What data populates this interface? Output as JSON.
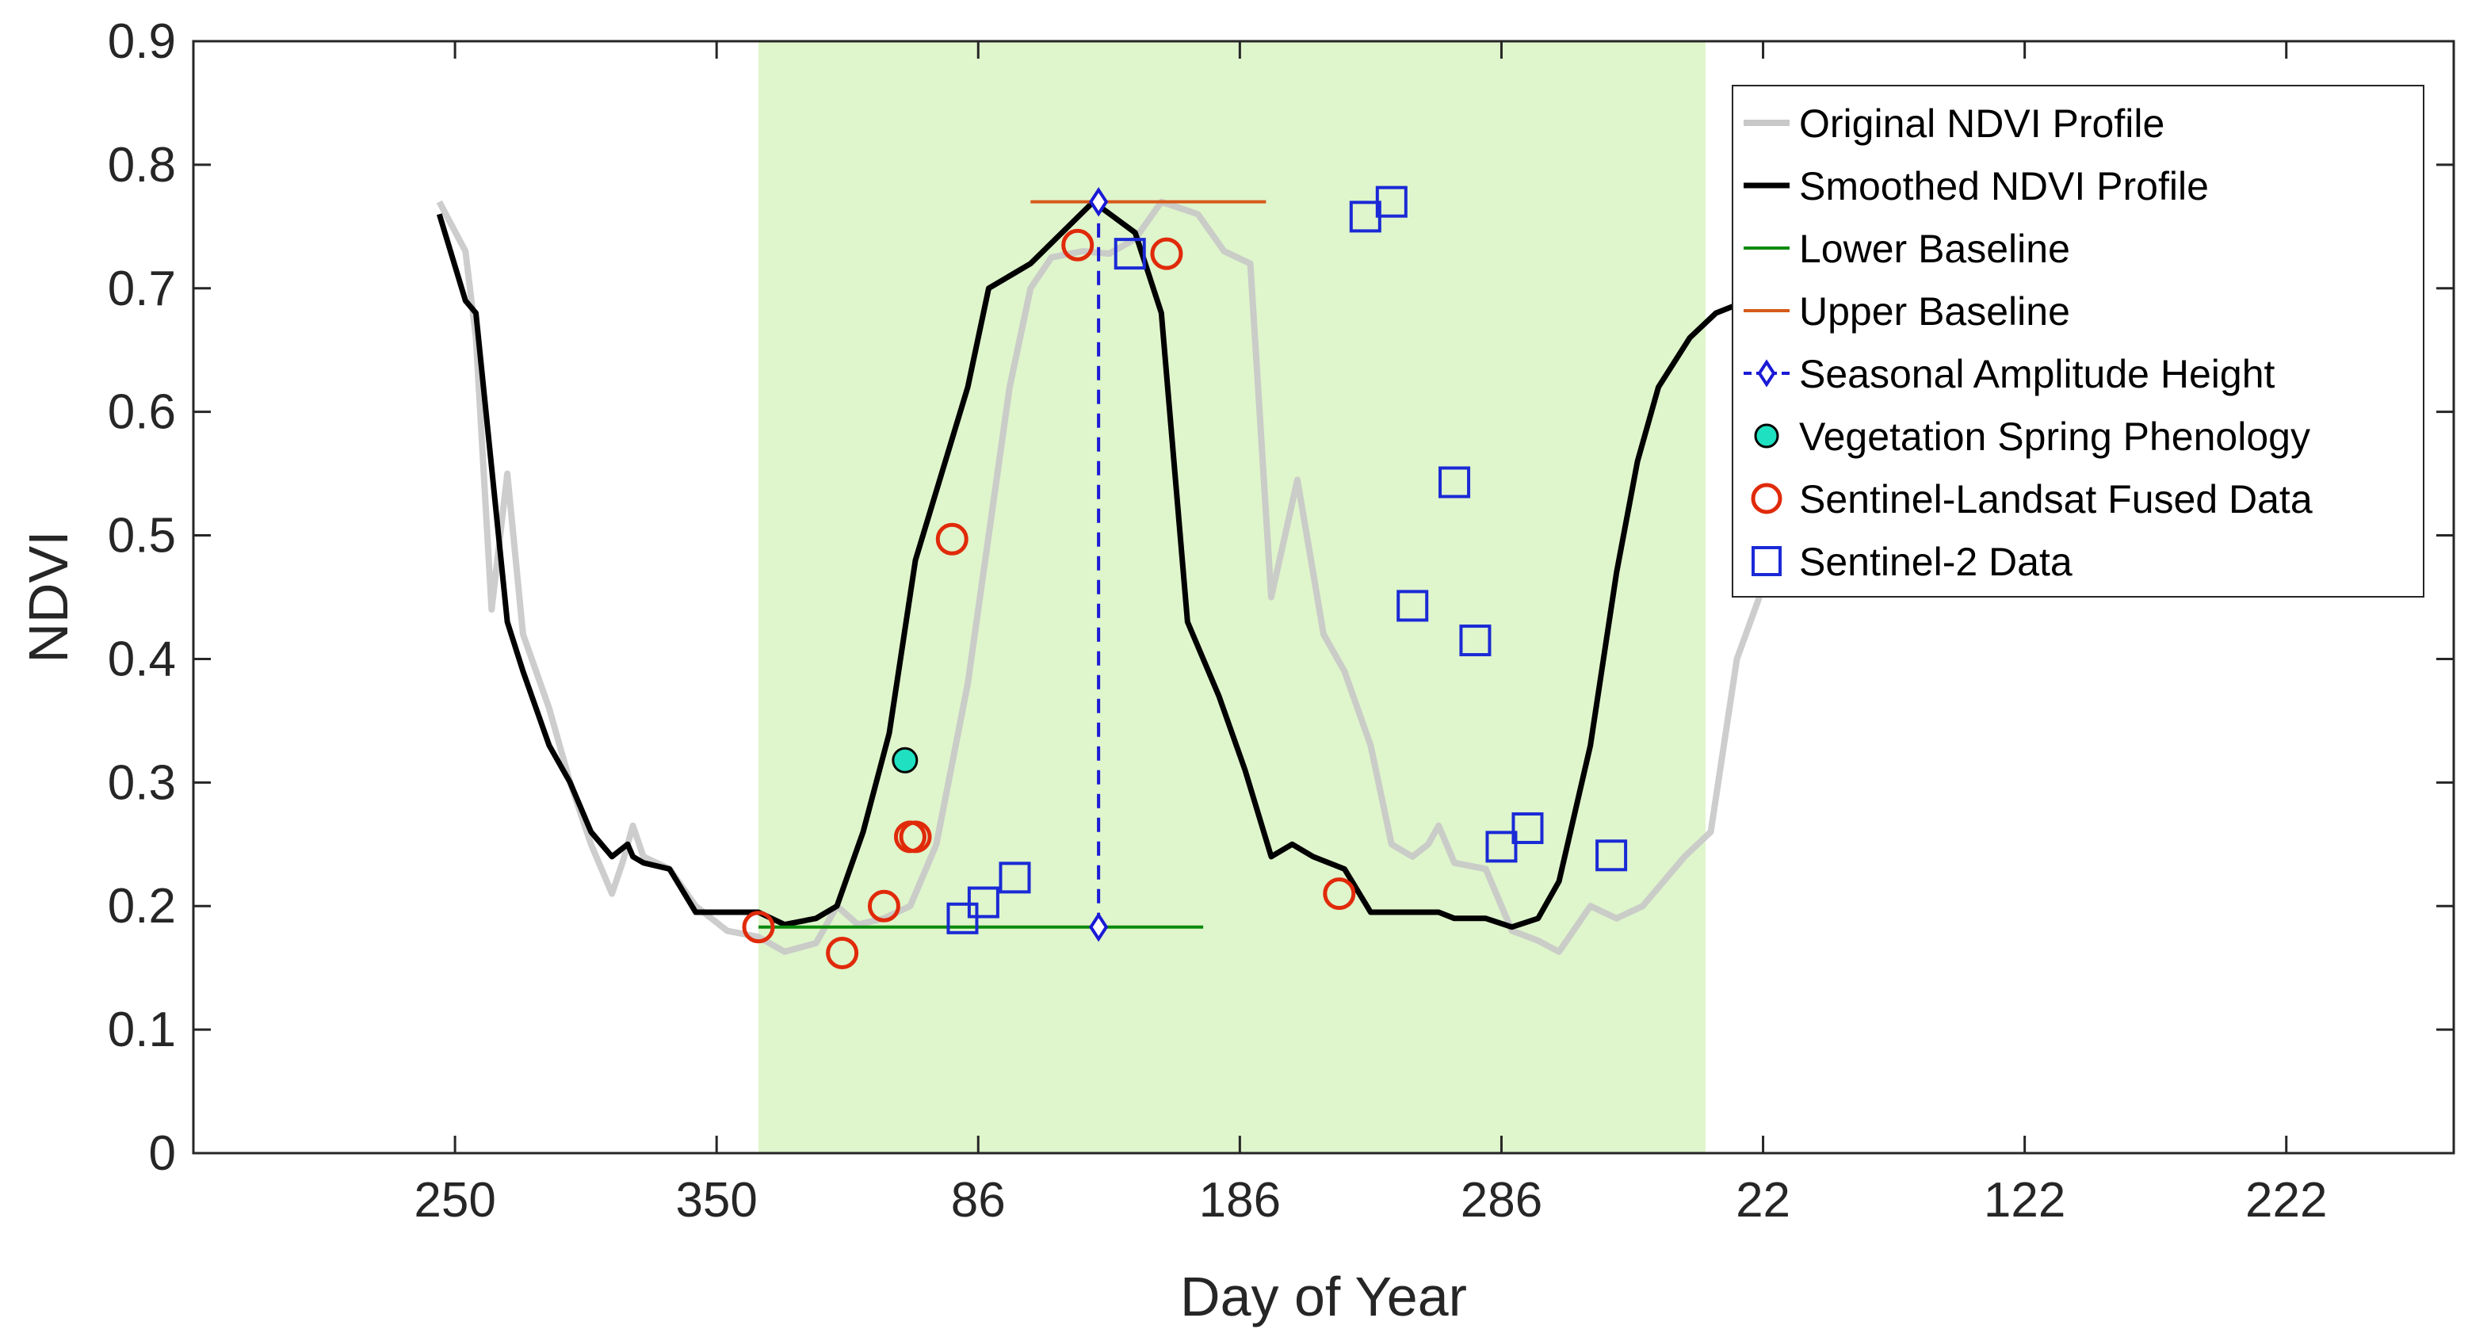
{
  "chart_data": {
    "type": "line",
    "title": "",
    "xlabel": "Day of Year",
    "ylabel": "NDVI",
    "x_range": [
      200,
      570
    ],
    "ylim": [
      0,
      0.9
    ],
    "grid": false,
    "legend_position": "top-right",
    "x_ticks": [
      {
        "x": 250,
        "label": "250"
      },
      {
        "x": 300,
        "label": "350"
      },
      {
        "x": 350,
        "label": "86"
      },
      {
        "x": 400,
        "label": "186"
      },
      {
        "x": 450,
        "label": "286"
      },
      {
        "x": 500,
        "label": "22"
      },
      {
        "x": 550,
        "label": "122"
      },
      {
        "x": 600,
        "label": "222"
      }
    ],
    "y_ticks": [
      {
        "y": 0,
        "label": "0"
      },
      {
        "y": 0.1,
        "label": "0.1"
      },
      {
        "y": 0.2,
        "label": "0.2"
      },
      {
        "y": 0.3,
        "label": "0.3"
      },
      {
        "y": 0.4,
        "label": "0.4"
      },
      {
        "y": 0.5,
        "label": "0.5"
      },
      {
        "y": 0.6,
        "label": "0.6"
      },
      {
        "y": 0.7,
        "label": "0.7"
      },
      {
        "y": 0.8,
        "label": "0.8"
      },
      {
        "y": 0.9,
        "label": "0.9"
      }
    ],
    "season_band": {
      "x_start": 308,
      "x_end": 489,
      "color": "#dff5cc"
    },
    "series": [
      {
        "name": "Original NDVI Profile",
        "color": "#c8c8c8",
        "x": [
          247,
          252,
          254,
          257,
          260,
          263,
          268,
          272,
          276,
          280,
          282,
          284,
          286,
          291,
          296,
          302,
          308,
          313,
          319,
          323,
          327,
          332,
          337,
          342,
          348,
          352,
          356,
          360,
          364,
          370,
          375,
          380,
          385,
          392,
          397,
          402,
          406,
          411,
          416,
          420,
          425,
          429,
          433,
          436,
          438,
          441,
          447,
          452,
          457,
          461,
          467,
          472,
          477,
          481,
          485,
          490,
          495,
          501,
          506,
          510,
          515,
          521,
          525,
          530,
          535,
          540,
          546,
          550,
          553
        ],
        "y": [
          0.77,
          0.73,
          0.66,
          0.44,
          0.55,
          0.42,
          0.36,
          0.3,
          0.25,
          0.21,
          0.235,
          0.265,
          0.24,
          0.23,
          0.2,
          0.18,
          0.175,
          0.163,
          0.17,
          0.2,
          0.185,
          0.19,
          0.2,
          0.25,
          0.38,
          0.5,
          0.62,
          0.7,
          0.725,
          0.73,
          0.728,
          0.74,
          0.77,
          0.76,
          0.73,
          0.72,
          0.45,
          0.545,
          0.42,
          0.39,
          0.33,
          0.25,
          0.24,
          0.25,
          0.265,
          0.235,
          0.23,
          0.18,
          0.172,
          0.163,
          0.2,
          0.19,
          0.2,
          0.22,
          0.24,
          0.26,
          0.4,
          0.47,
          0.56,
          0.6,
          0.63,
          0.65,
          0.67,
          0.68,
          0.69,
          0.7,
          0.71,
          0.72,
          0.72
        ]
      },
      {
        "name": "Smoothed NDVI Profile",
        "color": "#000000",
        "x": [
          247,
          252,
          254,
          260,
          263,
          268,
          272,
          276,
          280,
          283,
          284,
          286,
          291,
          296,
          302,
          308,
          313,
          319,
          323,
          328,
          333,
          338,
          343,
          348,
          352,
          356,
          360,
          366,
          372,
          380,
          385,
          390,
          396,
          401,
          406,
          410,
          414,
          420,
          425,
          429,
          433,
          436,
          438,
          441,
          447,
          452,
          457,
          461,
          467,
          472,
          476,
          480,
          486,
          491,
          497,
          502,
          507
        ],
        "y": [
          0.76,
          0.69,
          0.68,
          0.43,
          0.39,
          0.33,
          0.3,
          0.26,
          0.24,
          0.25,
          0.24,
          0.235,
          0.23,
          0.195,
          0.195,
          0.195,
          0.185,
          0.19,
          0.2,
          0.26,
          0.34,
          0.48,
          0.55,
          0.62,
          0.7,
          0.71,
          0.72,
          0.745,
          0.77,
          0.745,
          0.68,
          0.43,
          0.37,
          0.31,
          0.24,
          0.25,
          0.24,
          0.23,
          0.195,
          0.195,
          0.195,
          0.195,
          0.195,
          0.19,
          0.19,
          0.183,
          0.19,
          0.22,
          0.33,
          0.47,
          0.56,
          0.62,
          0.66,
          0.68,
          0.69,
          0.7,
          0.72
        ]
      },
      {
        "name": "Lower Baseline",
        "color": "#0b8a0b",
        "x": [
          308,
          393
        ],
        "y": [
          0.183,
          0.183
        ]
      },
      {
        "name": "Upper Baseline",
        "color": "#d65a1a",
        "x": [
          360,
          405
        ],
        "y": [
          0.77,
          0.77
        ]
      },
      {
        "name": "Seasonal Amplitude Height",
        "color": "#1a1ad6",
        "marker": "diamond",
        "x": [
          373,
          373
        ],
        "y": [
          0.183,
          0.77
        ]
      },
      {
        "name": "Vegetation Spring Phenology",
        "color": "#1fe0c0",
        "marker": "filled-circle",
        "x": [
          336
        ],
        "y": [
          0.318
        ]
      },
      {
        "name": "Sentinel-Landsat Fused Data",
        "color": "#e02a0a",
        "marker": "circle",
        "x": [
          308,
          324,
          332,
          337,
          338,
          345,
          369,
          386,
          419
        ],
        "y": [
          0.183,
          0.162,
          0.2,
          0.256,
          0.256,
          0.497,
          0.735,
          0.728,
          0.21
        ]
      },
      {
        "name": "Sentinel-2 Data",
        "color": "#1a2ad6",
        "marker": "square",
        "x": [
          347,
          351,
          357,
          379,
          424,
          429,
          433,
          441,
          445,
          450,
          455,
          471
        ],
        "y": [
          0.19,
          0.203,
          0.223,
          0.728,
          0.758,
          0.77,
          0.443,
          0.543,
          0.415,
          0.248,
          0.263,
          0.241
        ]
      }
    ]
  }
}
